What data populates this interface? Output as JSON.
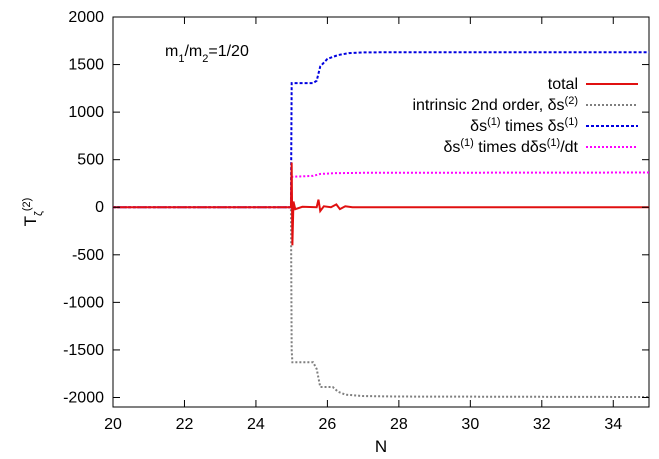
{
  "chart_data": {
    "type": "line",
    "xlabel": "N",
    "ylabel": {
      "base": "T",
      "sub": "ζ",
      "sup": "(2)"
    },
    "xlim": [
      20,
      35
    ],
    "ylim": [
      -2100,
      2000
    ],
    "xticks": [
      20,
      22,
      24,
      26,
      28,
      30,
      32,
      34
    ],
    "yticks": [
      -2000,
      -1500,
      -1000,
      -500,
      0,
      500,
      1000,
      1500,
      2000
    ],
    "annotation": {
      "parts": [
        [
          "m",
          ""
        ],
        [
          "1",
          "sub"
        ],
        [
          "/m",
          ""
        ],
        [
          "2",
          "sub"
        ],
        [
          "=1/20",
          ""
        ]
      ]
    },
    "legend_position": "top-right",
    "series": [
      {
        "name_parts": [
          [
            "total",
            ""
          ]
        ],
        "color": "#e01010",
        "dash": "none",
        "points": [
          [
            20,
            0
          ],
          [
            24.98,
            0
          ],
          [
            25.0,
            470
          ],
          [
            25.02,
            -400
          ],
          [
            25.05,
            60
          ],
          [
            25.1,
            -20
          ],
          [
            25.3,
            5
          ],
          [
            25.7,
            0
          ],
          [
            25.75,
            80
          ],
          [
            25.8,
            -40
          ],
          [
            25.9,
            10
          ],
          [
            26.1,
            0
          ],
          [
            26.25,
            30
          ],
          [
            26.35,
            -20
          ],
          [
            26.5,
            10
          ],
          [
            26.7,
            0
          ],
          [
            27,
            0
          ],
          [
            35,
            0
          ]
        ]
      },
      {
        "name_parts": [
          [
            "intrinsic 2nd order, δs",
            ""
          ],
          [
            "(2)",
            "sup"
          ]
        ],
        "color": "#7f7f7f",
        "dash": "2,2",
        "points": [
          [
            20,
            0
          ],
          [
            24.98,
            0
          ],
          [
            25.0,
            -1500
          ],
          [
            25.02,
            -1630
          ],
          [
            25.6,
            -1630
          ],
          [
            25.7,
            -1700
          ],
          [
            25.8,
            -1890
          ],
          [
            26.15,
            -1890
          ],
          [
            26.3,
            -1940
          ],
          [
            26.5,
            -1970
          ],
          [
            27,
            -1985
          ],
          [
            28,
            -1990
          ],
          [
            35,
            -1995
          ]
        ]
      },
      {
        "name_parts": [
          [
            "δs",
            ""
          ],
          [
            "(1)",
            "sup"
          ],
          [
            " times δs",
            ""
          ],
          [
            "(1)",
            "sup"
          ]
        ],
        "color": "#0000e0",
        "dash": "3,2",
        "points": [
          [
            20,
            0
          ],
          [
            24.98,
            0
          ],
          [
            25.0,
            1305
          ],
          [
            25.6,
            1305
          ],
          [
            25.7,
            1330
          ],
          [
            25.8,
            1480
          ],
          [
            26.0,
            1560
          ],
          [
            26.3,
            1600
          ],
          [
            26.6,
            1620
          ],
          [
            27,
            1628
          ],
          [
            28,
            1630
          ],
          [
            35,
            1630
          ]
        ]
      },
      {
        "name_parts": [
          [
            "δs",
            ""
          ],
          [
            "(1)",
            "sup"
          ],
          [
            " times dδs",
            ""
          ],
          [
            "(1)",
            "sup"
          ],
          [
            "/dt",
            ""
          ]
        ],
        "color": "#ff00ff",
        "dash": "2,2",
        "points": [
          [
            20,
            0
          ],
          [
            24.98,
            0
          ],
          [
            25.0,
            320
          ],
          [
            25.6,
            330
          ],
          [
            25.8,
            350
          ],
          [
            26.2,
            358
          ],
          [
            27,
            362
          ],
          [
            35,
            365
          ]
        ]
      }
    ]
  }
}
